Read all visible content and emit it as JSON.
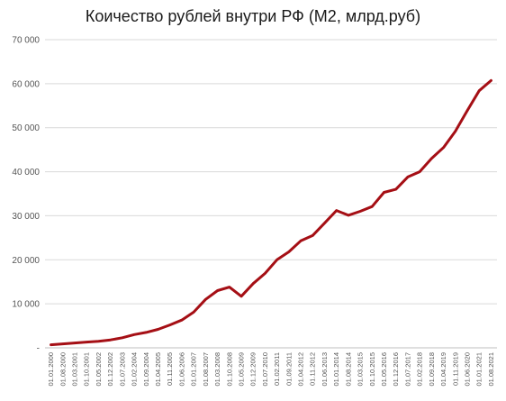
{
  "chart_data": {
    "type": "line",
    "title": "Коичество рублей внутри РФ (М2, млрд.руб)",
    "xlabel": "",
    "ylabel": "",
    "ylim": [
      0,
      70000
    ],
    "yticks": [
      0,
      10000,
      20000,
      30000,
      40000,
      50000,
      60000,
      70000
    ],
    "ytick_labels": [
      "-",
      "10 000",
      "20 000",
      "30 000",
      "40 000",
      "50 000",
      "60 000",
      "70 000"
    ],
    "grid": true,
    "legend": "none",
    "line_color": "#a50f15",
    "x_tick_labels": [
      "01.01.2000",
      "01.08.2000",
      "01.03.2001",
      "01.10.2001",
      "01.05.2002",
      "01.12.2002",
      "01.07.2003",
      "01.02.2004",
      "01.09.2004",
      "01.04.2005",
      "01.11.2005",
      "01.06.2006",
      "01.01.2007",
      "01.08.2007",
      "01.03.2008",
      "01.10.2008",
      "01.05.2009",
      "01.12.2009",
      "01.07.2010",
      "01.02.2011",
      "01.09.2011",
      "01.04.2012",
      "01.11.2012",
      "01.06.2013",
      "01.01.2014",
      "01.08.2014",
      "01.03.2015",
      "01.10.2015",
      "01.05.2016",
      "01.12.2016",
      "01.07.2017",
      "01.02.2018",
      "01.09.2018",
      "01.04.2019",
      "01.11.2019",
      "01.06.2020",
      "01.01.2021",
      "01.08.2021"
    ],
    "series": [
      {
        "x": [
          "01.01.2000",
          "01.08.2000",
          "01.03.2001",
          "01.10.2001",
          "01.05.2002",
          "01.12.2002",
          "01.07.2003",
          "01.02.2004",
          "01.09.2004",
          "01.04.2005",
          "01.11.2005",
          "01.06.2006",
          "01.01.2007",
          "01.08.2007",
          "01.03.2008",
          "01.10.2008",
          "01.05.2009",
          "01.12.2009",
          "01.07.2010",
          "01.02.2011",
          "01.09.2011",
          "01.04.2012",
          "01.11.2012",
          "01.06.2013",
          "01.01.2014",
          "01.08.2014",
          "01.03.2015",
          "01.10.2015",
          "01.05.2016",
          "01.12.2016",
          "01.07.2017",
          "01.02.2018",
          "01.09.2018",
          "01.04.2019",
          "01.11.2019",
          "01.06.2020",
          "01.01.2021",
          "01.08.2021"
        ],
        "values": [
          700,
          900,
          1100,
          1300,
          1500,
          1800,
          2300,
          3000,
          3500,
          4200,
          5200,
          6300,
          8100,
          11000,
          13000,
          13800,
          11700,
          14600,
          16900,
          20000,
          21800,
          24300,
          25500,
          28300,
          31200,
          30100,
          31000,
          32100,
          35300,
          36000,
          38800,
          40000,
          43000,
          45500,
          49200,
          53900,
          58400,
          60700
        ]
      }
    ]
  }
}
